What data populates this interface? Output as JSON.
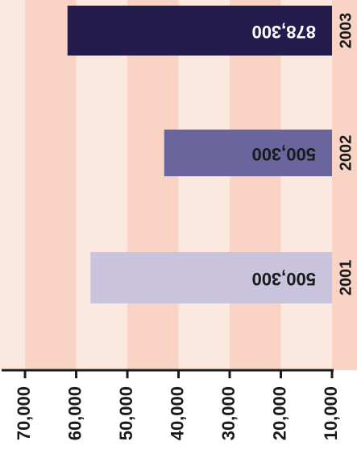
{
  "chart_data": {
    "type": "bar",
    "orientation": "horizontal",
    "categories": [
      "2001",
      "2002",
      "2003"
    ],
    "values": [
      57200,
      42800,
      61700
    ],
    "data_labels": [
      "500,300",
      "500,300",
      "878,300"
    ],
    "x_ticks": [
      "10,000",
      "20,000",
      "30,000",
      "40,000",
      "50,000",
      "60,000",
      "70,000"
    ],
    "xlim": [
      10000,
      73000
    ],
    "grid": "alternating bands",
    "legend": "none",
    "rendering": "rotated 180 degrees",
    "colors": {
      "band_dark": "#f9d3c4",
      "band_light": "#fbe9df",
      "bars": [
        "#c9c3dd",
        "#6a659c",
        "#231c4c"
      ],
      "label_dark_text": "#1a1a1a",
      "label_light_text": "#ffffff",
      "axis": "#1a1a1a"
    }
  }
}
